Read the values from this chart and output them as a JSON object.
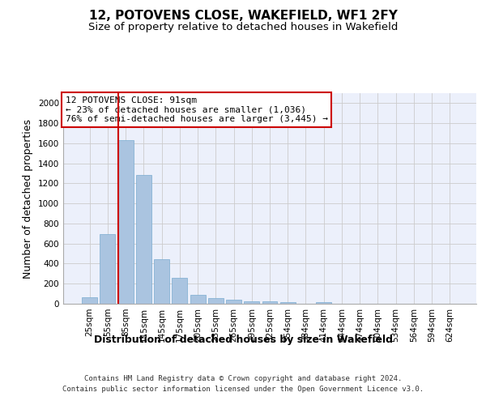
{
  "title": "12, POTOVENS CLOSE, WAKEFIELD, WF1 2FY",
  "subtitle": "Size of property relative to detached houses in Wakefield",
  "xlabel": "Distribution of detached houses by size in Wakefield",
  "ylabel": "Number of detached properties",
  "categories": [
    "25sqm",
    "55sqm",
    "85sqm",
    "115sqm",
    "145sqm",
    "175sqm",
    "205sqm",
    "235sqm",
    "265sqm",
    "295sqm",
    "325sqm",
    "354sqm",
    "384sqm",
    "414sqm",
    "444sqm",
    "474sqm",
    "504sqm",
    "534sqm",
    "564sqm",
    "594sqm",
    "624sqm"
  ],
  "values": [
    65,
    695,
    1635,
    1285,
    445,
    255,
    90,
    55,
    40,
    28,
    28,
    15,
    0,
    20,
    0,
    0,
    0,
    0,
    0,
    0,
    0
  ],
  "bar_color": "#aac4e0",
  "bar_edgecolor": "#7aacd0",
  "vline_color": "#cc0000",
  "annotation_text": "12 POTOVENS CLOSE: 91sqm\n← 23% of detached houses are smaller (1,036)\n76% of semi-detached houses are larger (3,445) →",
  "annotation_box_color": "#ffffff",
  "annotation_box_edgecolor": "#cc0000",
  "ylim": [
    0,
    2100
  ],
  "yticks": [
    0,
    200,
    400,
    600,
    800,
    1000,
    1200,
    1400,
    1600,
    1800,
    2000
  ],
  "grid_color": "#cccccc",
  "bg_color": "#ecf0fb",
  "footer_line1": "Contains HM Land Registry data © Crown copyright and database right 2024.",
  "footer_line2": "Contains public sector information licensed under the Open Government Licence v3.0.",
  "title_fontsize": 11,
  "subtitle_fontsize": 9.5,
  "axis_label_fontsize": 9,
  "tick_fontsize": 7.5,
  "annotation_fontsize": 8,
  "footer_fontsize": 6.5
}
